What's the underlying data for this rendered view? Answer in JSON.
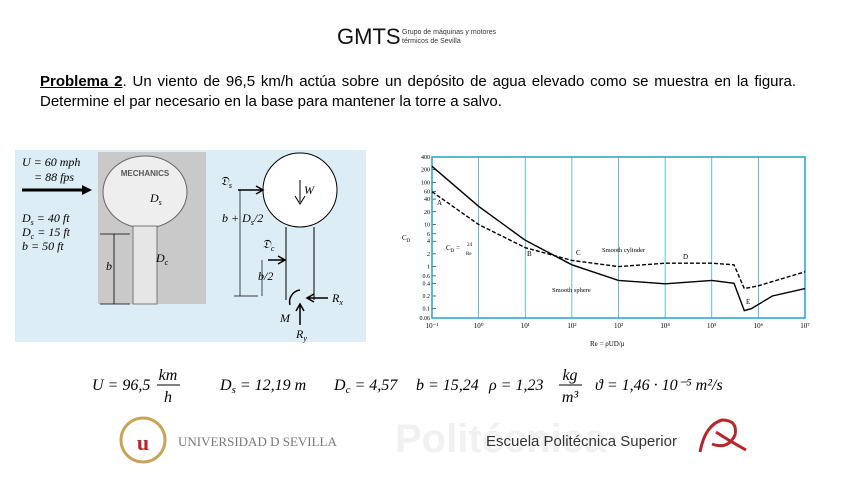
{
  "header": {
    "logo": "GMTS",
    "line_1": "Grupo de máquinas y motores",
    "line_2": "térmicos de Sevilla"
  },
  "problem": {
    "label": "Problema 2",
    "text": ". Un viento de 96,5 km/h actúa sobre un depósito de agua elevado como se muestra en la figura. Determine el par necesario en la base para mantener la torre a salvo."
  },
  "photo": {
    "speed": "U = 60 mph",
    "speed_fps": "= 88 fps",
    "ds": {
      "sym": "D",
      "sub": "s",
      "rest": " = 40 ft"
    },
    "dc": {
      "sym": "D",
      "sub": "c",
      "rest": " = 15 ft"
    },
    "b": "b = 50 ft",
    "tank_text": "MECHANICS",
    "label_ds": {
      "sym": "D",
      "sub": "s"
    },
    "label_dc": {
      "sym": "D",
      "sub": "c"
    },
    "label_b": "b"
  },
  "diagram": {
    "ds": {
      "sym": "𝔇",
      "sub": "s"
    },
    "w": "W",
    "height": {
      "a": "b + D",
      "sub": "s",
      "b": "/2"
    },
    "dc": {
      "sym": "𝔇",
      "sub": "c"
    },
    "half_b": "b/2",
    "rx": {
      "sym": "R",
      "sub": "x"
    },
    "m": "M",
    "ry": {
      "sym": "R",
      "sub": "y"
    }
  },
  "chart_data": {
    "type": "line",
    "log_x": true,
    "log_y": true,
    "xlim": [
      0.1,
      10000000
    ],
    "ylim": [
      0.06,
      400
    ],
    "yticks": [
      400,
      200,
      100,
      60,
      40,
      20,
      10,
      6,
      4,
      2,
      1,
      0.6,
      0.4,
      0.2,
      0.1,
      0.06
    ],
    "xticks": [
      {
        "value": 0.1,
        "label": "10⁻¹"
      },
      {
        "value": 1,
        "label": "10⁰"
      },
      {
        "value": 10,
        "label": "10¹"
      },
      {
        "value": 100,
        "label": "10²"
      },
      {
        "value": 1000,
        "label": "10³"
      },
      {
        "value": 10000,
        "label": "10⁴"
      },
      {
        "value": 100000,
        "label": "10⁵"
      },
      {
        "value": 1000000,
        "label": "10⁶"
      },
      {
        "value": 10000000,
        "label": "10⁷"
      }
    ],
    "grid": true,
    "frame_color": "#1fa3cf",
    "y_label": {
      "sym": "C",
      "sub": "D"
    },
    "x_label": "Re = ρUD/μ",
    "formula": {
      "sym": "C",
      "sub": "D",
      "eq": " = ",
      "num": "24",
      "den": "Re"
    },
    "points": [
      "A",
      "B",
      "C",
      "D",
      "E"
    ],
    "series": [
      {
        "name": "Smooth cylinder",
        "color": "#000000",
        "line_style": "dashed",
        "x": [
          0.1,
          1,
          10,
          100,
          1000,
          10000,
          100000,
          300000,
          500000,
          1000000,
          10000000
        ],
        "values": [
          60,
          10,
          2.8,
          1.4,
          1.0,
          1.2,
          1.2,
          1.1,
          0.3,
          0.35,
          0.75
        ]
      },
      {
        "name": "Smooth sphere",
        "color": "#000000",
        "line_style": "solid",
        "x": [
          0.1,
          1,
          10,
          100,
          1000,
          10000,
          100000,
          300000,
          500000,
          700000,
          2000000,
          10000000
        ],
        "values": [
          240,
          27,
          4.2,
          1.1,
          0.47,
          0.39,
          0.47,
          0.4,
          0.09,
          0.1,
          0.2,
          0.3
        ]
      }
    ]
  },
  "equations": {
    "u": {
      "lhs": "U = 96,5",
      "num": "km",
      "den": "h"
    },
    "ds": {
      "sym": "D",
      "sub": "s",
      "rest": " = 12,19 m"
    },
    "dc": {
      "sym": "D",
      "sub": "c",
      "rest": " = 4,57"
    },
    "b": "b = 15,24",
    "rho": {
      "lhs": "ρ = 1,23",
      "num": "kg",
      "den": "m³"
    },
    "nu": "ϑ = 1,46 · 10⁻⁵ m²/s"
  },
  "footer": {
    "university": "UNIVERSIDAD D SEVILLA",
    "watermark": "Politécnica",
    "school": "Escuela Politécnica Superior"
  }
}
